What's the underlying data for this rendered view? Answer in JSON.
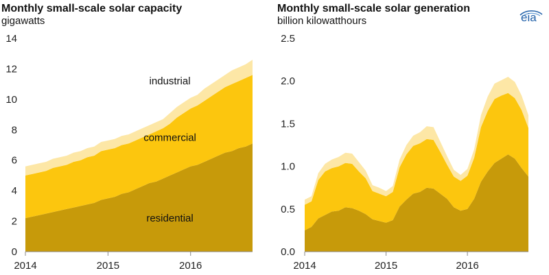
{
  "logo": {
    "text": "eia"
  },
  "colors": {
    "residential": "#c79a0a",
    "commercial": "#fcc60e",
    "industrial": "#fde7a6",
    "axis": "#888888"
  },
  "chart_data": [
    {
      "type": "area",
      "title": "Monthly small-scale solar capacity",
      "subtitle": "gigawatts",
      "x_ticks": [
        "2014",
        "2015",
        "2016"
      ],
      "x_tick_index": [
        0,
        12,
        24
      ],
      "ylim": [
        0,
        14
      ],
      "y_ticks": [
        0,
        2,
        4,
        6,
        8,
        10,
        12,
        14
      ],
      "y_tick_labels": [
        "0",
        "2",
        "4",
        "6",
        "8",
        "10",
        "12",
        "14"
      ],
      "stacked": true,
      "series_labels": [
        {
          "name": "industrial",
          "index": 18,
          "y": 11.2
        },
        {
          "name": "commercial",
          "index": 18,
          "y": 7.5
        },
        {
          "name": "residential",
          "index": 18,
          "y": 2.2
        }
      ],
      "months": 34,
      "series": [
        {
          "name": "residential",
          "values": [
            2.2,
            2.3,
            2.4,
            2.5,
            2.6,
            2.7,
            2.8,
            2.9,
            3.0,
            3.1,
            3.2,
            3.4,
            3.5,
            3.6,
            3.8,
            3.9,
            4.1,
            4.3,
            4.5,
            4.6,
            4.8,
            5.0,
            5.2,
            5.4,
            5.6,
            5.7,
            5.9,
            6.1,
            6.3,
            6.5,
            6.6,
            6.8,
            6.9,
            7.1
          ]
        },
        {
          "name": "commercial",
          "values": [
            2.8,
            2.8,
            2.8,
            2.8,
            2.9,
            2.9,
            2.9,
            3.0,
            3.0,
            3.1,
            3.1,
            3.2,
            3.2,
            3.2,
            3.2,
            3.2,
            3.2,
            3.2,
            3.2,
            3.3,
            3.3,
            3.4,
            3.6,
            3.7,
            3.8,
            3.9,
            4.0,
            4.1,
            4.2,
            4.3,
            4.4,
            4.4,
            4.5,
            4.5
          ]
        },
        {
          "name": "industrial",
          "values": [
            0.6,
            0.6,
            0.6,
            0.6,
            0.6,
            0.6,
            0.6,
            0.6,
            0.6,
            0.6,
            0.6,
            0.6,
            0.6,
            0.6,
            0.6,
            0.6,
            0.6,
            0.6,
            0.6,
            0.6,
            0.6,
            0.7,
            0.7,
            0.7,
            0.7,
            0.7,
            0.8,
            0.8,
            0.8,
            0.8,
            0.9,
            0.9,
            0.9,
            1.0
          ]
        }
      ]
    },
    {
      "type": "area",
      "title": "Monthly small-scale solar generation",
      "subtitle": "billion kilowatthours",
      "x_ticks": [
        "2014",
        "2015",
        "2016"
      ],
      "x_tick_index": [
        0,
        12,
        24
      ],
      "ylim": [
        0,
        2.5
      ],
      "y_ticks": [
        0,
        0.5,
        1.0,
        1.5,
        2.0,
        2.5
      ],
      "y_tick_labels": [
        "0.0",
        "0.5",
        "1.0",
        "1.5",
        "2.0",
        "2.5"
      ],
      "stacked": true,
      "months": 34,
      "series": [
        {
          "name": "residential",
          "values": [
            0.25,
            0.29,
            0.39,
            0.43,
            0.47,
            0.48,
            0.52,
            0.51,
            0.48,
            0.44,
            0.38,
            0.36,
            0.34,
            0.37,
            0.53,
            0.61,
            0.68,
            0.7,
            0.75,
            0.74,
            0.68,
            0.62,
            0.52,
            0.48,
            0.5,
            0.62,
            0.82,
            0.94,
            1.04,
            1.09,
            1.14,
            1.09,
            0.98,
            0.88
          ]
        },
        {
          "name": "commercial",
          "values": [
            0.3,
            0.3,
            0.45,
            0.51,
            0.51,
            0.52,
            0.52,
            0.52,
            0.46,
            0.42,
            0.33,
            0.32,
            0.31,
            0.33,
            0.46,
            0.53,
            0.56,
            0.57,
            0.57,
            0.57,
            0.49,
            0.4,
            0.36,
            0.35,
            0.39,
            0.48,
            0.64,
            0.71,
            0.75,
            0.74,
            0.72,
            0.71,
            0.68,
            0.57
          ]
        },
        {
          "name": "industrial",
          "values": [
            0.06,
            0.06,
            0.08,
            0.09,
            0.1,
            0.11,
            0.12,
            0.12,
            0.11,
            0.09,
            0.07,
            0.07,
            0.06,
            0.07,
            0.09,
            0.11,
            0.12,
            0.13,
            0.15,
            0.15,
            0.12,
            0.1,
            0.08,
            0.07,
            0.08,
            0.1,
            0.14,
            0.17,
            0.18,
            0.18,
            0.19,
            0.19,
            0.17,
            0.15
          ]
        }
      ]
    }
  ]
}
